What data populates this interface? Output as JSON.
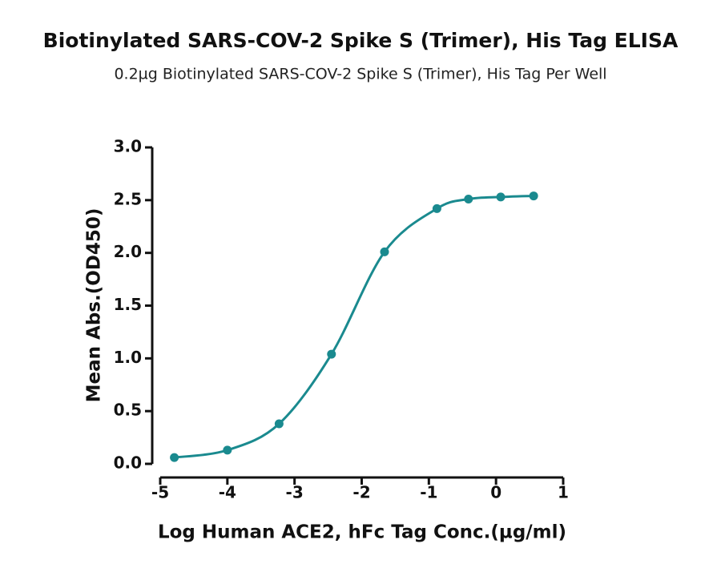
{
  "chart_data": {
    "type": "scatter",
    "title": "Biotinylated SARS-COV-2 Spike S (Trimer), His Tag ELISA",
    "subtitle": "0.2µg Biotinylated SARS-COV-2 Spike S (Trimer), His Tag Per Well",
    "x_label": "Log Human ACE2, hFc Tag Conc.(µg/ml)",
    "y_label": "Mean Abs.(OD450)",
    "x": [
      -4.79,
      -4.0,
      -3.23,
      -2.45,
      -1.66,
      -0.88,
      -0.41,
      0.07,
      0.56
    ],
    "series": [
      {
        "color": "#1a8a8f",
        "values": [
          0.06,
          0.13,
          0.38,
          1.04,
          2.01,
          2.42,
          2.51,
          2.53,
          2.54
        ]
      }
    ],
    "xlim": [
      -5,
      1
    ],
    "xticks": [
      -5,
      -4,
      -3,
      -2,
      -1,
      0,
      1
    ],
    "ylim": [
      0,
      3
    ],
    "yticks": [
      {
        "value": 0,
        "label": "0.0"
      },
      {
        "value": 0.5,
        "label": "0.5"
      },
      {
        "value": 1,
        "label": "1.0"
      },
      {
        "value": 1.5,
        "label": "1.5"
      },
      {
        "value": 2,
        "label": "2.0"
      },
      {
        "value": 2.5,
        "label": "2.5"
      },
      {
        "value": 3,
        "label": "3.0"
      }
    ],
    "grid": false
  }
}
